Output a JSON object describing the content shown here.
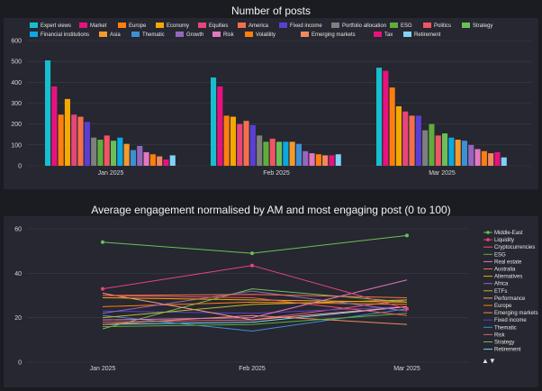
{
  "charts": {
    "bar_title": "Number of posts",
    "line_title": "Average engagement normalised by AM and most engaging post (0 to 100)",
    "pager": "▲▼"
  },
  "chart_data": [
    {
      "type": "bar",
      "title": "Number of posts",
      "categories": [
        "Jan 2025",
        "Feb 2025",
        "Mar 2025"
      ],
      "ylim": [
        0,
        600
      ],
      "yticks": [
        0,
        100,
        200,
        300,
        400,
        500,
        600
      ],
      "grid": true,
      "legend_position": "top",
      "series": [
        {
          "name": "Expert views",
          "color": "#17becf",
          "values": [
            505,
            423,
            470
          ]
        },
        {
          "name": "Market",
          "color": "#e8117f",
          "values": [
            380,
            380,
            455
          ]
        },
        {
          "name": "Europe",
          "color": "#ff7f0e",
          "values": [
            245,
            240,
            375
          ]
        },
        {
          "name": "Economy",
          "color": "#f5a800",
          "values": [
            320,
            235,
            285
          ]
        },
        {
          "name": "Equities",
          "color": "#e8457a",
          "values": [
            245,
            200,
            260
          ]
        },
        {
          "name": "America",
          "color": "#f4704c",
          "values": [
            235,
            215,
            240
          ]
        },
        {
          "name": "Fixed income",
          "color": "#5b3fd4",
          "values": [
            210,
            195,
            240
          ]
        },
        {
          "name": "Portfolio allocation",
          "color": "#7f7f7f",
          "values": [
            135,
            145,
            170
          ]
        },
        {
          "name": "ESG",
          "color": "#5fae3c",
          "values": [
            125,
            115,
            200
          ]
        },
        {
          "name": "Politics",
          "color": "#f05565",
          "values": [
            145,
            130,
            145
          ]
        },
        {
          "name": "Strategy",
          "color": "#6bbf59",
          "values": [
            120,
            115,
            155
          ]
        },
        {
          "name": "Financial institutions",
          "color": "#0aa9e2",
          "values": [
            135,
            115,
            135
          ]
        },
        {
          "name": "Asia",
          "color": "#f39a2b",
          "values": [
            105,
            115,
            125
          ]
        },
        {
          "name": "Thematic",
          "color": "#3d8fd6",
          "values": [
            75,
            105,
            120
          ]
        },
        {
          "name": "Growth",
          "color": "#9467bd",
          "values": [
            95,
            70,
            100
          ]
        },
        {
          "name": "Risk",
          "color": "#e377c2",
          "values": [
            65,
            60,
            80
          ]
        },
        {
          "name": "Volatility",
          "color": "#ff7f0e",
          "values": [
            55,
            55,
            70
          ]
        },
        {
          "name": "Emerging markets",
          "color": "#f08a5d",
          "values": [
            45,
            50,
            60
          ]
        },
        {
          "name": "Tax",
          "color": "#e8117f",
          "values": [
            30,
            50,
            65
          ]
        },
        {
          "name": "Retirement",
          "color": "#7fd3f7",
          "values": [
            50,
            55,
            40
          ]
        }
      ]
    },
    {
      "type": "line",
      "title": "Average engagement normalised by AM and most engaging post (0 to 100)",
      "x": [
        "Jan 2025",
        "Feb 2025",
        "Mar 2025"
      ],
      "ylim": [
        0,
        60
      ],
      "yticks": [
        0,
        20,
        40,
        60
      ],
      "grid": true,
      "legend_position": "right",
      "series": [
        {
          "name": "Middle-East",
          "color": "#6bbf59",
          "values": [
            54,
            49,
            57
          ],
          "markers": true
        },
        {
          "name": "Liquidity",
          "color": "#e8457a",
          "values": [
            33,
            43.5,
            24
          ],
          "markers": true
        },
        {
          "name": "Cryptocurrencies",
          "color": "#f05565",
          "values": [
            30,
            29,
            21
          ]
        },
        {
          "name": "ESG",
          "color": "#5fae3c",
          "values": [
            16,
            17,
            22
          ]
        },
        {
          "name": "Real estate",
          "color": "#e377c2",
          "values": [
            19,
            20,
            37
          ]
        },
        {
          "name": "Australia",
          "color": "#f4704c",
          "values": [
            30,
            30.5,
            29
          ]
        },
        {
          "name": "Alternatives",
          "color": "#f5a800",
          "values": [
            29,
            28,
            27
          ]
        },
        {
          "name": "Africa",
          "color": "#9467bd",
          "values": [
            22,
            32,
            23
          ]
        },
        {
          "name": "ETFs",
          "color": "#bcbd22",
          "values": [
            20,
            26,
            28
          ]
        },
        {
          "name": "Performance",
          "color": "#ff9896",
          "values": [
            31,
            19,
            25
          ]
        },
        {
          "name": "Europe",
          "color": "#ff7f0e",
          "values": [
            25,
            27,
            26
          ]
        },
        {
          "name": "Emerging markets",
          "color": "#f08a5d",
          "values": [
            17,
            21,
            17
          ]
        },
        {
          "name": "Fixed income",
          "color": "#5b3fd4",
          "values": [
            23,
            22,
            25
          ]
        },
        {
          "name": "Thematic",
          "color": "#3d8fd6",
          "values": [
            21,
            14,
            24
          ]
        },
        {
          "name": "Risk",
          "color": "#d6616b",
          "values": [
            18,
            19,
            28
          ]
        },
        {
          "name": "Strategy",
          "color": "#6bbf59",
          "values": [
            15,
            33,
            27
          ]
        },
        {
          "name": "Retirement",
          "color": "#7fd3f7",
          "values": [
            17,
            18,
            25
          ]
        }
      ]
    }
  ]
}
